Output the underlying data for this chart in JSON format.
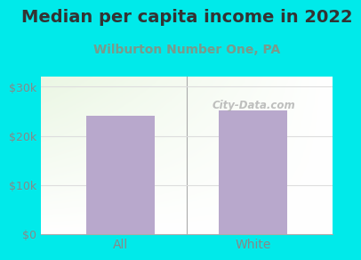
{
  "title": "Median per capita income in 2022",
  "subtitle": "Wilburton Number One, PA",
  "categories": [
    "All",
    "White"
  ],
  "values": [
    24100,
    25200
  ],
  "bar_color": "#b8a8cc",
  "background_color": "#00eaea",
  "plot_bg_left": "#d6eec8",
  "plot_bg_right": "#f8fff8",
  "title_fontsize": 14,
  "subtitle_fontsize": 10,
  "tick_color": "#888888",
  "ylim": [
    0,
    32000
  ],
  "yticks": [
    0,
    10000,
    20000,
    30000
  ],
  "ytick_labels": [
    "$0",
    "$10k",
    "$20k",
    "$30k"
  ],
  "watermark": "City-Data.com",
  "subtitle_color": "#7a9a8a",
  "title_color": "#333333",
  "grid_color": "#dddddd"
}
